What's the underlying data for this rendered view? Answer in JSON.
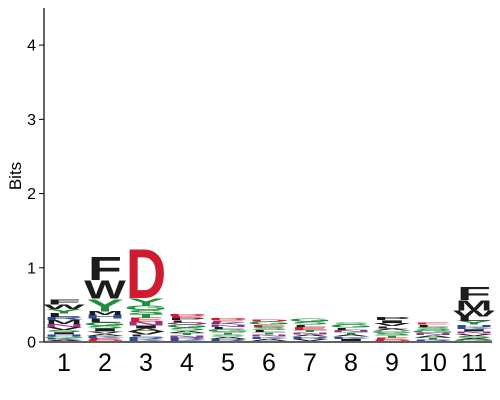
{
  "chart_data": {
    "type": "sequence-logo",
    "ylabel": "Bits",
    "xlabel": "",
    "ylim": [
      0,
      4.5
    ],
    "yticks": [
      0,
      1,
      2,
      3,
      4
    ],
    "positions": [
      "1",
      "2",
      "3",
      "4",
      "5",
      "6",
      "7",
      "8",
      "9",
      "10",
      "11"
    ],
    "colors": {
      "red": "#d01c31",
      "green": "#1e8f3c",
      "blue": "#2a4e96",
      "purple": "#a0308a",
      "dark": "#1c1c1c"
    },
    "stacks": [
      {
        "position": "1",
        "letters": [
          {
            "letter": "A",
            "bits": 0.02,
            "color": "#1c1c1c"
          },
          {
            "letter": "K",
            "bits": 0.02,
            "color": "#2a4e96"
          },
          {
            "letter": "G",
            "bits": 0.02,
            "color": "#1e8f3c"
          },
          {
            "letter": "H",
            "bits": 0.03,
            "color": "#2a4e96"
          },
          {
            "letter": "I",
            "bits": 0.03,
            "color": "#1c1c1c"
          },
          {
            "letter": "S",
            "bits": 0.03,
            "color": "#1e8f3c"
          },
          {
            "letter": "V",
            "bits": 0.04,
            "color": "#1c1c1c"
          },
          {
            "letter": "N",
            "bits": 0.04,
            "color": "#a0308a"
          },
          {
            "letter": "M",
            "bits": 0.05,
            "color": "#1c1c1c"
          },
          {
            "letter": "R",
            "bits": 0.04,
            "color": "#2a4e96"
          },
          {
            "letter": "L",
            "bits": 0.05,
            "color": "#1c1c1c"
          },
          {
            "letter": "Y",
            "bits": 0.06,
            "color": "#1e8f3c"
          },
          {
            "letter": "W",
            "bits": 0.06,
            "color": "#1c1c1c"
          },
          {
            "letter": "F",
            "bits": 0.07,
            "color": "#1c1c1c"
          }
        ]
      },
      {
        "position": "2",
        "letters": [
          {
            "letter": "D",
            "bits": 0.02,
            "color": "#d01c31"
          },
          {
            "letter": "E",
            "bits": 0.02,
            "color": "#d01c31"
          },
          {
            "letter": "K",
            "bits": 0.03,
            "color": "#2a4e96"
          },
          {
            "letter": "A",
            "bits": 0.03,
            "color": "#1c1c1c"
          },
          {
            "letter": "V",
            "bits": 0.03,
            "color": "#1c1c1c"
          },
          {
            "letter": "I",
            "bits": 0.04,
            "color": "#1c1c1c"
          },
          {
            "letter": "S",
            "bits": 0.04,
            "color": "#1e8f3c"
          },
          {
            "letter": "G",
            "bits": 0.04,
            "color": "#1e8f3c"
          },
          {
            "letter": "L",
            "bits": 0.05,
            "color": "#1c1c1c"
          },
          {
            "letter": "H",
            "bits": 0.05,
            "color": "#2a4e96"
          },
          {
            "letter": "M",
            "bits": 0.05,
            "color": "#1c1c1c"
          },
          {
            "letter": "Y",
            "bits": 0.17,
            "color": "#1e8f3c"
          },
          {
            "letter": "W",
            "bits": 0.25,
            "color": "#1c1c1c"
          },
          {
            "letter": "F",
            "bits": 0.32,
            "color": "#1c1c1c"
          }
        ]
      },
      {
        "position": "3",
        "letters": [
          {
            "letter": "K",
            "bits": 0.03,
            "color": "#2a4e96"
          },
          {
            "letter": "R",
            "bits": 0.03,
            "color": "#2a4e96"
          },
          {
            "letter": "L",
            "bits": 0.03,
            "color": "#1c1c1c"
          },
          {
            "letter": "V",
            "bits": 0.04,
            "color": "#1c1c1c"
          },
          {
            "letter": "A",
            "bits": 0.04,
            "color": "#1c1c1c"
          },
          {
            "letter": "I",
            "bits": 0.04,
            "color": "#1c1c1c"
          },
          {
            "letter": "N",
            "bits": 0.05,
            "color": "#a0308a"
          },
          {
            "letter": "E",
            "bits": 0.05,
            "color": "#d01c31"
          },
          {
            "letter": "T",
            "bits": 0.05,
            "color": "#1e8f3c"
          },
          {
            "letter": "S",
            "bits": 0.06,
            "color": "#1e8f3c"
          },
          {
            "letter": "G",
            "bits": 0.06,
            "color": "#1e8f3c"
          },
          {
            "letter": "Y",
            "bits": 0.1,
            "color": "#1e8f3c"
          },
          {
            "letter": "D",
            "bits": 0.68,
            "color": "#d01c31"
          }
        ]
      },
      {
        "position": "4",
        "letters": [
          {
            "letter": "K",
            "bits": 0.02,
            "color": "#2a4e96"
          },
          {
            "letter": "R",
            "bits": 0.03,
            "color": "#2a4e96"
          },
          {
            "letter": "N",
            "bits": 0.03,
            "color": "#a0308a"
          },
          {
            "letter": "T",
            "bits": 0.03,
            "color": "#1e8f3c"
          },
          {
            "letter": "A",
            "bits": 0.03,
            "color": "#1c1c1c"
          },
          {
            "letter": "S",
            "bits": 0.04,
            "color": "#1e8f3c"
          },
          {
            "letter": "G",
            "bits": 0.04,
            "color": "#1e8f3c"
          },
          {
            "letter": "Q",
            "bits": 0.03,
            "color": "#a0308a"
          },
          {
            "letter": "L",
            "bits": 0.03,
            "color": "#1c1c1c"
          },
          {
            "letter": "P",
            "bits": 0.03,
            "color": "#1c1c1c"
          },
          {
            "letter": "E",
            "bits": 0.03,
            "color": "#d01c31"
          },
          {
            "letter": "D",
            "bits": 0.03,
            "color": "#d01c31"
          }
        ]
      },
      {
        "position": "5",
        "letters": [
          {
            "letter": "R",
            "bits": 0.03,
            "color": "#2a4e96"
          },
          {
            "letter": "A",
            "bits": 0.03,
            "color": "#1c1c1c"
          },
          {
            "letter": "S",
            "bits": 0.03,
            "color": "#1e8f3c"
          },
          {
            "letter": "T",
            "bits": 0.03,
            "color": "#1e8f3c"
          },
          {
            "letter": "G",
            "bits": 0.04,
            "color": "#1e8f3c"
          },
          {
            "letter": "L",
            "bits": 0.03,
            "color": "#1c1c1c"
          },
          {
            "letter": "N",
            "bits": 0.03,
            "color": "#a0308a"
          },
          {
            "letter": "K",
            "bits": 0.03,
            "color": "#2a4e96"
          },
          {
            "letter": "E",
            "bits": 0.03,
            "color": "#d01c31"
          },
          {
            "letter": "D",
            "bits": 0.03,
            "color": "#d01c31"
          }
        ]
      },
      {
        "position": "6",
        "letters": [
          {
            "letter": "A",
            "bits": 0.03,
            "color": "#1c1c1c"
          },
          {
            "letter": "K",
            "bits": 0.03,
            "color": "#2a4e96"
          },
          {
            "letter": "N",
            "bits": 0.03,
            "color": "#a0308a"
          },
          {
            "letter": "T",
            "bits": 0.03,
            "color": "#1e8f3c"
          },
          {
            "letter": "L",
            "bits": 0.03,
            "color": "#1c1c1c"
          },
          {
            "letter": "S",
            "bits": 0.04,
            "color": "#1e8f3c"
          },
          {
            "letter": "E",
            "bits": 0.03,
            "color": "#d01c31"
          },
          {
            "letter": "G",
            "bits": 0.04,
            "color": "#1e8f3c"
          },
          {
            "letter": "D",
            "bits": 0.03,
            "color": "#d01c31"
          }
        ]
      },
      {
        "position": "7",
        "letters": [
          {
            "letter": "V",
            "bits": 0.03,
            "color": "#1c1c1c"
          },
          {
            "letter": "R",
            "bits": 0.03,
            "color": "#2a4e96"
          },
          {
            "letter": "A",
            "bits": 0.03,
            "color": "#1c1c1c"
          },
          {
            "letter": "N",
            "bits": 0.03,
            "color": "#a0308a"
          },
          {
            "letter": "T",
            "bits": 0.03,
            "color": "#1e8f3c"
          },
          {
            "letter": "E",
            "bits": 0.04,
            "color": "#d01c31"
          },
          {
            "letter": "L",
            "bits": 0.03,
            "color": "#1c1c1c"
          },
          {
            "letter": "S",
            "bits": 0.04,
            "color": "#1e8f3c"
          },
          {
            "letter": "G",
            "bits": 0.04,
            "color": "#1e8f3c"
          }
        ]
      },
      {
        "position": "8",
        "letters": [
          {
            "letter": "I",
            "bits": 0.03,
            "color": "#1c1c1c"
          },
          {
            "letter": "K",
            "bits": 0.03,
            "color": "#2a4e96"
          },
          {
            "letter": "A",
            "bits": 0.03,
            "color": "#1c1c1c"
          },
          {
            "letter": "T",
            "bits": 0.03,
            "color": "#1e8f3c"
          },
          {
            "letter": "N",
            "bits": 0.03,
            "color": "#a0308a"
          },
          {
            "letter": "L",
            "bits": 0.03,
            "color": "#1c1c1c"
          },
          {
            "letter": "G",
            "bits": 0.04,
            "color": "#1e8f3c"
          },
          {
            "letter": "S",
            "bits": 0.03,
            "color": "#1e8f3c"
          }
        ]
      },
      {
        "position": "9",
        "letters": [
          {
            "letter": "D",
            "bits": 0.02,
            "color": "#d01c31"
          },
          {
            "letter": "E",
            "bits": 0.03,
            "color": "#d01c31"
          },
          {
            "letter": "T",
            "bits": 0.03,
            "color": "#1e8f3c"
          },
          {
            "letter": "S",
            "bits": 0.03,
            "color": "#1e8f3c"
          },
          {
            "letter": "G",
            "bits": 0.03,
            "color": "#1e8f3c"
          },
          {
            "letter": "A",
            "bits": 0.03,
            "color": "#1c1c1c"
          },
          {
            "letter": "L",
            "bits": 0.03,
            "color": "#1c1c1c"
          },
          {
            "letter": "V",
            "bits": 0.04,
            "color": "#1c1c1c"
          },
          {
            "letter": "I",
            "bits": 0.04,
            "color": "#1c1c1c"
          },
          {
            "letter": "P",
            "bits": 0.04,
            "color": "#1c1c1c"
          }
        ]
      },
      {
        "position": "10",
        "letters": [
          {
            "letter": "R",
            "bits": 0.02,
            "color": "#2a4e96"
          },
          {
            "letter": "T",
            "bits": 0.03,
            "color": "#1e8f3c"
          },
          {
            "letter": "A",
            "bits": 0.03,
            "color": "#1c1c1c"
          },
          {
            "letter": "N",
            "bits": 0.03,
            "color": "#a0308a"
          },
          {
            "letter": "G",
            "bits": 0.04,
            "color": "#1e8f3c"
          },
          {
            "letter": "S",
            "bits": 0.04,
            "color": "#1e8f3c"
          },
          {
            "letter": "L",
            "bits": 0.03,
            "color": "#1c1c1c"
          },
          {
            "letter": "E",
            "bits": 0.03,
            "color": "#d01c31"
          }
        ]
      },
      {
        "position": "11",
        "letters": [
          {
            "letter": "G",
            "bits": 0.02,
            "color": "#1e8f3c"
          },
          {
            "letter": "A",
            "bits": 0.02,
            "color": "#1c1c1c"
          },
          {
            "letter": "S",
            "bits": 0.03,
            "color": "#1e8f3c"
          },
          {
            "letter": "V",
            "bits": 0.03,
            "color": "#1c1c1c"
          },
          {
            "letter": "N",
            "bits": 0.03,
            "color": "#a0308a"
          },
          {
            "letter": "I",
            "bits": 0.03,
            "color": "#1c1c1c"
          },
          {
            "letter": "K",
            "bits": 0.03,
            "color": "#2a4e96"
          },
          {
            "letter": "H",
            "bits": 0.03,
            "color": "#2a4e96"
          },
          {
            "letter": "Y",
            "bits": 0.05,
            "color": "#1e8f3c"
          },
          {
            "letter": "L",
            "bits": 0.06,
            "color": "#1c1c1c"
          },
          {
            "letter": "W",
            "bits": 0.08,
            "color": "#1c1c1c"
          },
          {
            "letter": "M",
            "bits": 0.14,
            "color": "#1c1c1c"
          },
          {
            "letter": "F",
            "bits": 0.18,
            "color": "#1c1c1c"
          }
        ]
      }
    ]
  }
}
